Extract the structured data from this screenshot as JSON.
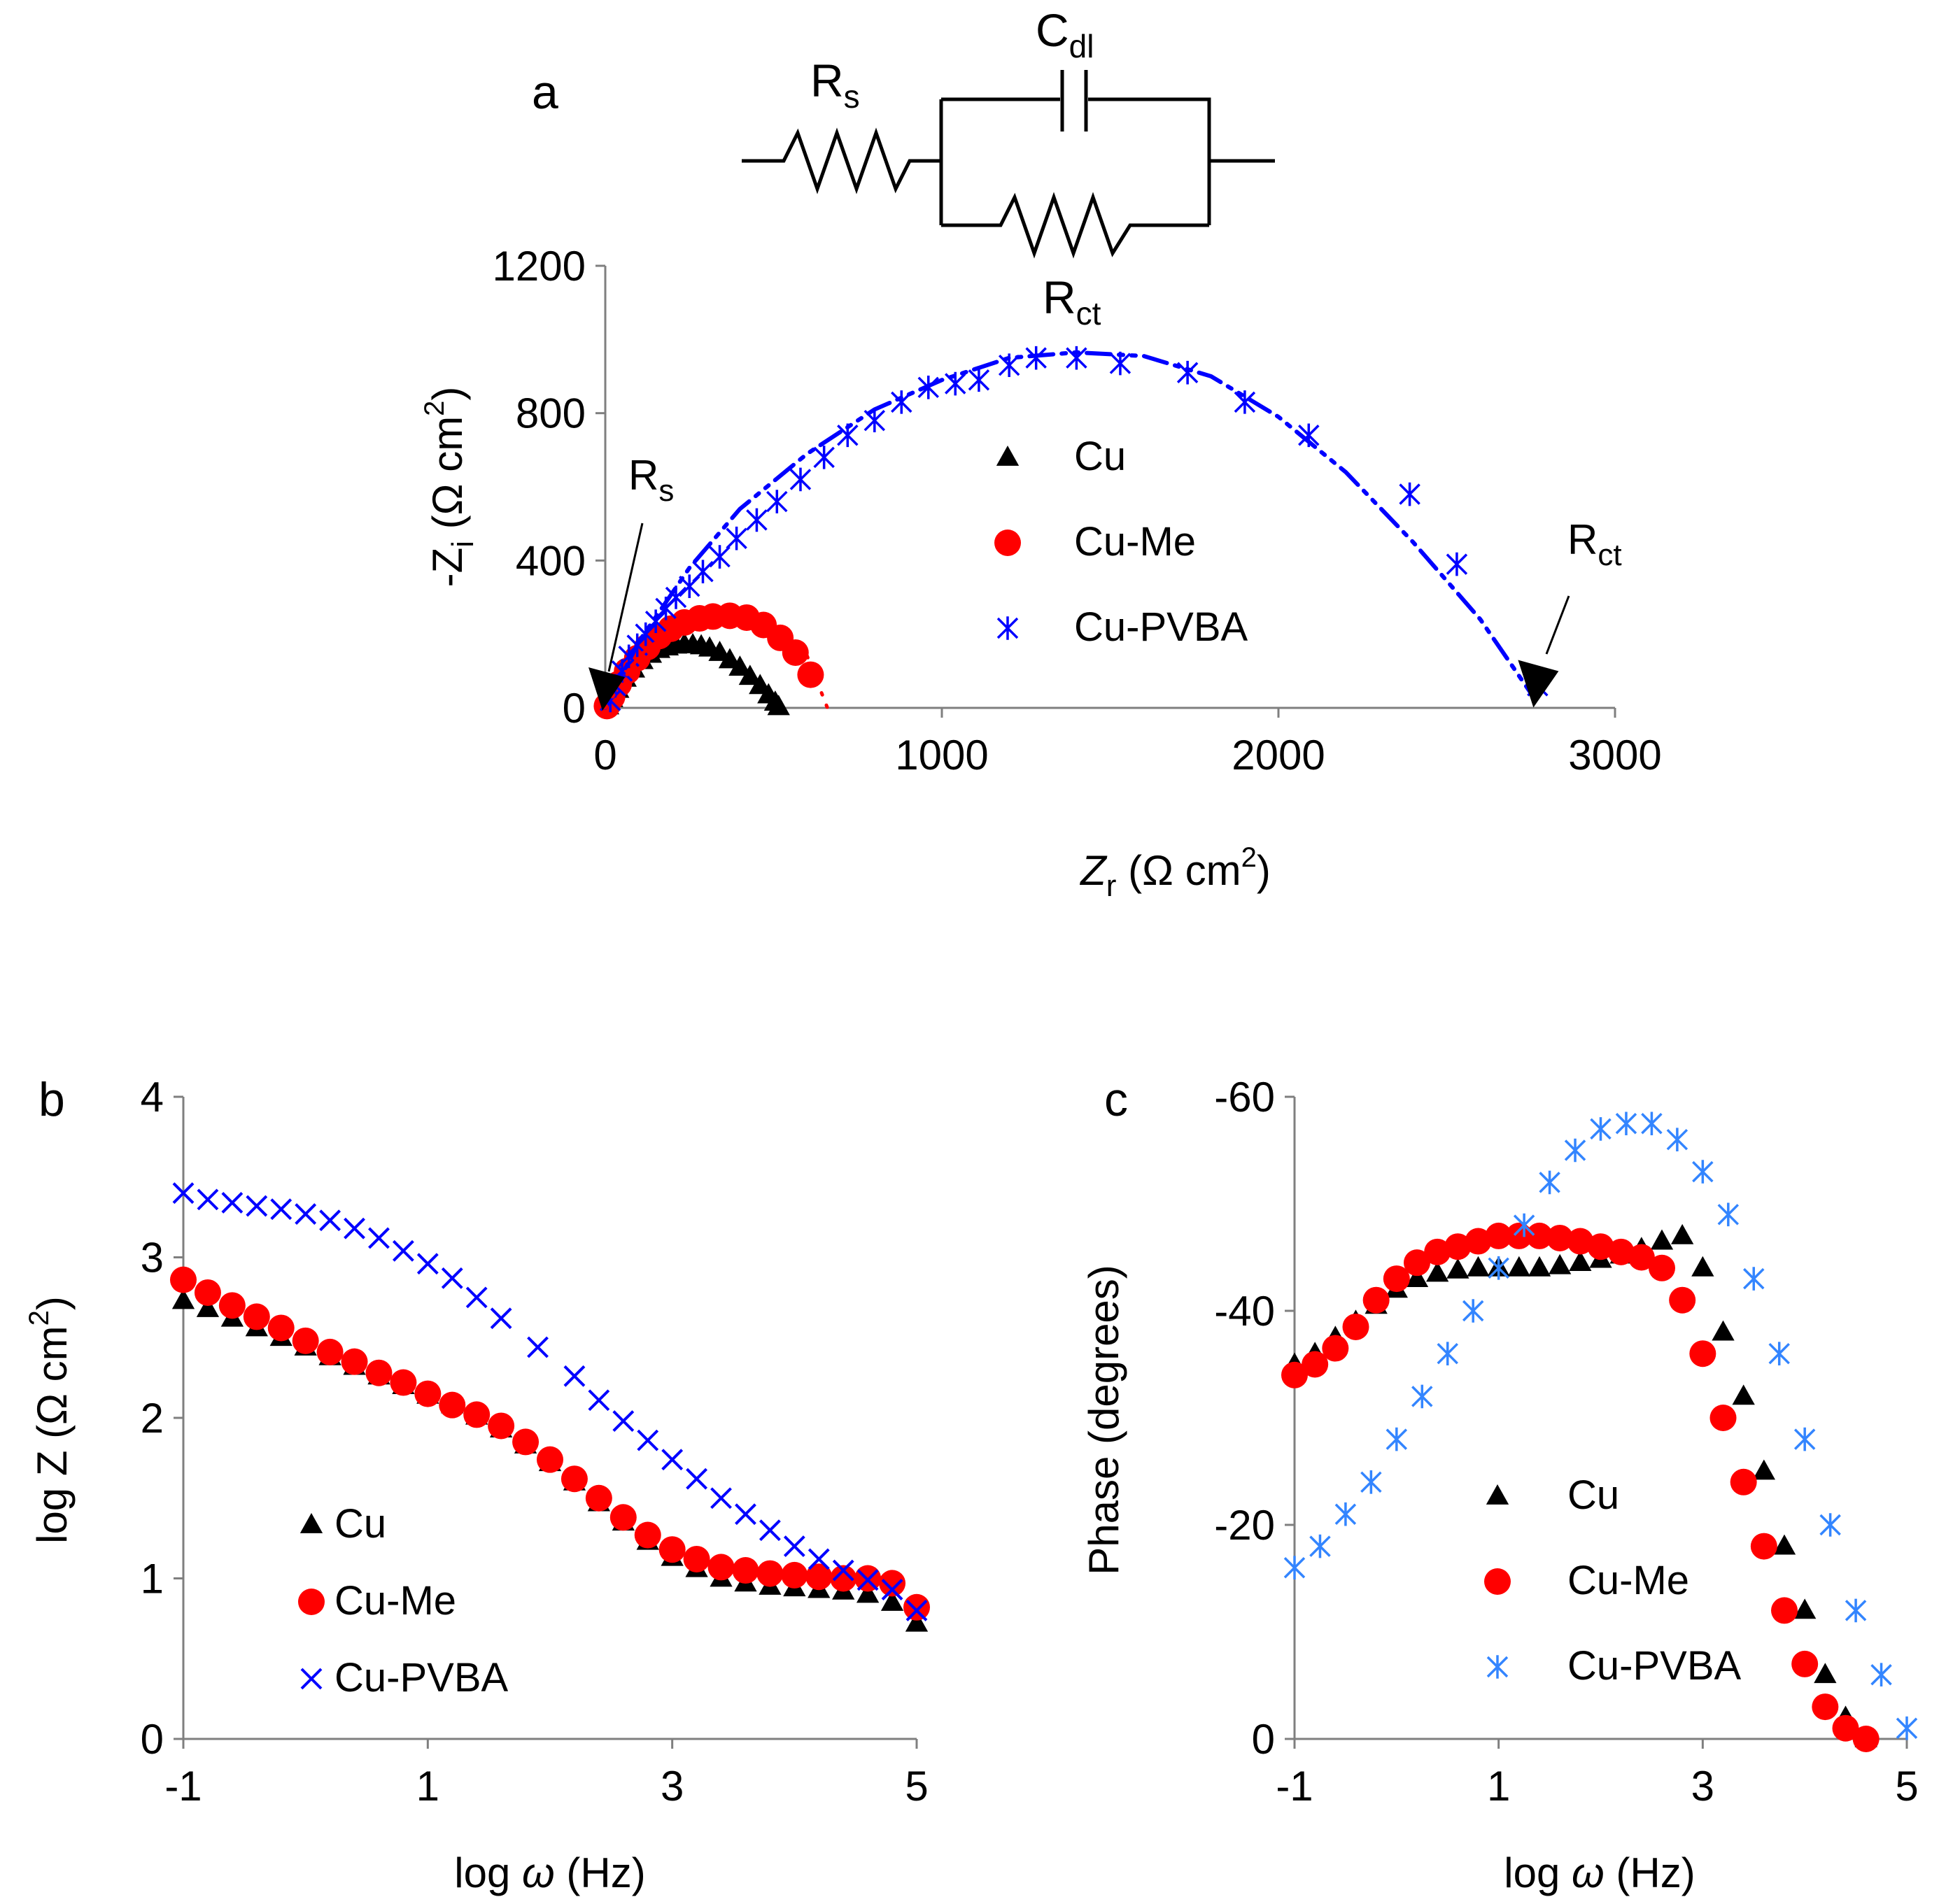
{
  "circuit": {
    "rs_label": "R",
    "rs_sub": "s",
    "cdl_label": "C",
    "cdl_sub": "dl",
    "rct_label": "R",
    "rct_sub": "ct"
  },
  "colors": {
    "Cu": "#000000",
    "Cu-Me": "#ff0000",
    "Cu-PVBA": "#0000ff",
    "Cu-PVBA-c": "#3385ff",
    "axis": "#7f7f7f"
  },
  "chart_data": [
    {
      "id": "a",
      "panel_label": "a",
      "type": "scatter",
      "title": "",
      "xlabel": {
        "main": "Z",
        "sub": "r",
        "unit": " (Ω cm",
        "sup": "2",
        "close": ")"
      },
      "ylabel": {
        "prefix": "-Z",
        "sub": "i",
        "unit": " (Ω cm",
        "sup": "2",
        "close": ")"
      },
      "xlim": [
        0,
        3000
      ],
      "ylim": [
        0,
        1200
      ],
      "xticks": [
        "0",
        "1000",
        "2000",
        "3000"
      ],
      "yticks": [
        "0",
        "400",
        "800",
        "1200"
      ],
      "legend": [
        {
          "name": "Cu",
          "marker": "triangle",
          "color": "#000000"
        },
        {
          "name": "Cu-Me",
          "marker": "circle",
          "color": "#ff0000"
        },
        {
          "name": "Cu-PVBA",
          "marker": "asterisk",
          "color": "#0000ff"
        }
      ],
      "annotations": [
        {
          "text": "R",
          "sub": "s",
          "x": 0,
          "y": 0,
          "note": "arrow to origin"
        },
        {
          "text": "R",
          "sub": "ct",
          "x": 2770,
          "y": 20,
          "note": "arrow to intercept"
        }
      ],
      "series": [
        {
          "name": "Cu",
          "marker": "triangle",
          "x": [
            8,
            20,
            38,
            60,
            85,
            110,
            135,
            160,
            185,
            210,
            235,
            260,
            285,
            310,
            340,
            370,
            400,
            430,
            460,
            485,
            505,
            515
          ],
          "y": [
            5,
            25,
            50,
            80,
            105,
            128,
            145,
            158,
            165,
            170,
            172,
            171,
            168,
            162,
            150,
            130,
            110,
            85,
            60,
            35,
            15,
            3
          ]
        },
        {
          "name": "Cu-Me",
          "marker": "circle",
          "x": [
            5,
            20,
            40,
            65,
            95,
            125,
            160,
            195,
            235,
            280,
            320,
            370,
            420,
            470,
            520,
            565,
            610
          ],
          "y": [
            5,
            30,
            65,
            100,
            135,
            165,
            195,
            215,
            232,
            243,
            248,
            250,
            245,
            225,
            190,
            150,
            90
          ]
        },
        {
          "name": "Cu-PVBA",
          "marker": "asterisk",
          "x": [
            15,
            30,
            50,
            70,
            95,
            120,
            150,
            180,
            210,
            250,
            290,
            340,
            390,
            450,
            510,
            580,
            650,
            720,
            800,
            880,
            960,
            1040,
            1110,
            1200,
            1280,
            1400,
            1530,
            1730,
            1900,
            2090,
            2390,
            2530,
            2770
          ],
          "y": [
            20,
            60,
            100,
            140,
            170,
            200,
            235,
            270,
            300,
            330,
            370,
            410,
            460,
            510,
            560,
            620,
            680,
            740,
            780,
            830,
            870,
            880,
            890,
            930,
            950,
            950,
            935,
            910,
            830,
            740,
            580,
            390,
            60
          ]
        },
        {
          "name": "fit",
          "type": "line",
          "style": "dash-dot-dot",
          "x": [
            0,
            100,
            250,
            400,
            600,
            800,
            1000,
            1200,
            1400,
            1600,
            1800,
            2000,
            2200,
            2400,
            2600,
            2750
          ],
          "y": [
            0,
            180,
            380,
            540,
            690,
            810,
            890,
            950,
            965,
            955,
            900,
            790,
            640,
            450,
            240,
            40
          ]
        },
        {
          "name": "fit-Cu-Me",
          "type": "line",
          "style": "dotted",
          "x": [
            0,
            100,
            200,
            300,
            400,
            500,
            600,
            660
          ],
          "y": [
            0,
            140,
            215,
            245,
            245,
            215,
            140,
            0
          ]
        }
      ]
    },
    {
      "id": "b",
      "panel_label": "b",
      "type": "scatter",
      "xlabel": {
        "main": "log ",
        "sym": "ω",
        "unit": " (Hz)"
      },
      "ylabel": {
        "main": "log Z (Ω cm",
        "sup": "2",
        "close": ")"
      },
      "xlim": [
        -1,
        5
      ],
      "ylim": [
        0,
        4
      ],
      "xticks": [
        "-1",
        "1",
        "3",
        "5"
      ],
      "yticks": [
        "0",
        "1",
        "2",
        "3",
        "4"
      ],
      "legend": [
        {
          "name": "Cu",
          "marker": "triangle",
          "color": "#000000"
        },
        {
          "name": "Cu-Me",
          "marker": "circle",
          "color": "#ff0000"
        },
        {
          "name": "Cu-PVBA",
          "marker": "x",
          "color": "#0000ff"
        }
      ],
      "series": [
        {
          "name": "Cu",
          "marker": "triangle",
          "x": [
            -1,
            -0.8,
            -0.6,
            -0.4,
            -0.2,
            0,
            0.2,
            0.4,
            0.6,
            0.8,
            1.0,
            1.2,
            1.4,
            1.6,
            1.8,
            2.0,
            2.2,
            2.4,
            2.6,
            2.8,
            3.0,
            3.2,
            3.4,
            3.6,
            3.8,
            4.0,
            4.2,
            4.4,
            4.6,
            4.8,
            5.0
          ],
          "y": [
            2.73,
            2.68,
            2.62,
            2.56,
            2.5,
            2.44,
            2.38,
            2.32,
            2.26,
            2.2,
            2.14,
            2.08,
            2.01,
            1.93,
            1.83,
            1.72,
            1.6,
            1.47,
            1.35,
            1.23,
            1.13,
            1.06,
            1.0,
            0.97,
            0.95,
            0.94,
            0.93,
            0.92,
            0.9,
            0.85,
            0.72
          ]
        },
        {
          "name": "Cu-Me",
          "marker": "circle",
          "x": [
            -1,
            -0.8,
            -0.6,
            -0.4,
            -0.2,
            0,
            0.2,
            0.4,
            0.6,
            0.8,
            1.0,
            1.2,
            1.4,
            1.6,
            1.8,
            2.0,
            2.2,
            2.4,
            2.6,
            2.8,
            3.0,
            3.2,
            3.4,
            3.6,
            3.8,
            4.0,
            4.2,
            4.4,
            4.6,
            4.8,
            5.0
          ],
          "y": [
            2.86,
            2.78,
            2.7,
            2.63,
            2.56,
            2.48,
            2.41,
            2.35,
            2.28,
            2.22,
            2.15,
            2.08,
            2.02,
            1.95,
            1.85,
            1.74,
            1.62,
            1.5,
            1.38,
            1.27,
            1.18,
            1.12,
            1.07,
            1.05,
            1.03,
            1.02,
            1.01,
            1.0,
            1.0,
            0.97,
            0.82
          ]
        },
        {
          "name": "Cu-PVBA",
          "marker": "x",
          "x": [
            -1,
            -0.8,
            -0.6,
            -0.4,
            -0.2,
            0,
            0.2,
            0.4,
            0.6,
            0.8,
            1.0,
            1.2,
            1.4,
            1.6,
            1.9,
            2.2,
            2.4,
            2.6,
            2.8,
            3.0,
            3.2,
            3.4,
            3.6,
            3.8,
            4.0,
            4.2,
            4.4,
            4.6,
            4.8,
            5.0
          ],
          "y": [
            3.4,
            3.36,
            3.34,
            3.32,
            3.3,
            3.27,
            3.23,
            3.18,
            3.12,
            3.04,
            2.96,
            2.87,
            2.75,
            2.62,
            2.44,
            2.26,
            2.11,
            1.98,
            1.86,
            1.74,
            1.62,
            1.5,
            1.4,
            1.3,
            1.2,
            1.12,
            1.05,
            0.99,
            0.93,
            0.8
          ]
        }
      ]
    },
    {
      "id": "c",
      "panel_label": "c",
      "type": "scatter",
      "xlabel": {
        "main": "log ",
        "sym": "ω",
        "unit": " (Hz)"
      },
      "ylabel": {
        "main": "Phase (degrees)"
      },
      "xlim": [
        -1,
        5
      ],
      "ylim": [
        0,
        -60
      ],
      "xticks": [
        "-1",
        "1",
        "3",
        "5"
      ],
      "yticks": [
        "0",
        "-20",
        "-40",
        "-60"
      ],
      "legend": [
        {
          "name": "Cu",
          "marker": "triangle",
          "color": "#000000"
        },
        {
          "name": "Cu-Me",
          "marker": "circle",
          "color": "#ff0000"
        },
        {
          "name": "Cu-PVBA",
          "marker": "asterisk",
          "color": "#3385ff"
        }
      ],
      "series": [
        {
          "name": "Cu",
          "marker": "triangle",
          "x": [
            -1,
            -0.8,
            -0.6,
            -0.4,
            -0.2,
            0,
            0.2,
            0.4,
            0.6,
            0.8,
            1.0,
            1.2,
            1.4,
            1.6,
            1.8,
            2.0,
            2.2,
            2.4,
            2.6,
            2.8,
            3.0,
            3.2,
            3.4,
            3.6,
            3.8,
            4.0,
            4.2,
            4.4,
            4.6
          ],
          "y": [
            -35,
            -36,
            -37.5,
            -39,
            -40.5,
            -42,
            -43,
            -43.5,
            -43.8,
            -44,
            -44,
            -44,
            -44,
            -44.2,
            -44.5,
            -44.8,
            -45.2,
            -45.8,
            -46.5,
            -47,
            -44,
            -38,
            -32,
            -25,
            -18,
            -12,
            -6,
            -2,
            0
          ]
        },
        {
          "name": "Cu-Me",
          "marker": "circle",
          "x": [
            -1,
            -0.8,
            -0.6,
            -0.4,
            -0.2,
            0,
            0.2,
            0.4,
            0.6,
            0.8,
            1.0,
            1.2,
            1.4,
            1.6,
            1.8,
            2.0,
            2.2,
            2.4,
            2.6,
            2.8,
            3.0,
            3.2,
            3.4,
            3.6,
            3.8,
            4.0,
            4.2,
            4.4,
            4.6
          ],
          "y": [
            -34,
            -35,
            -36.5,
            -38.5,
            -41,
            -43,
            -44.5,
            -45.5,
            -46,
            -46.5,
            -47,
            -47,
            -47,
            -46.8,
            -46.5,
            -46,
            -45.5,
            -45,
            -44,
            -41,
            -36,
            -30,
            -24,
            -18,
            -12,
            -7,
            -3,
            -1,
            0
          ]
        },
        {
          "name": "Cu-PVBA",
          "marker": "asterisk",
          "x": [
            -1,
            -0.75,
            -0.5,
            -0.25,
            0,
            0.25,
            0.5,
            0.75,
            1.0,
            1.25,
            1.5,
            1.75,
            2.0,
            2.25,
            2.5,
            2.75,
            3.0,
            3.25,
            3.5,
            3.75,
            4.0,
            4.25,
            4.5,
            4.75,
            5.0
          ],
          "y": [
            -16,
            -18,
            -21,
            -24,
            -28,
            -32,
            -36,
            -40,
            -44,
            -48,
            -52,
            -55,
            -57,
            -57.5,
            -57.5,
            -56,
            -53,
            -49,
            -43,
            -36,
            -28,
            -20,
            -12,
            -6,
            -1
          ]
        }
      ]
    }
  ]
}
